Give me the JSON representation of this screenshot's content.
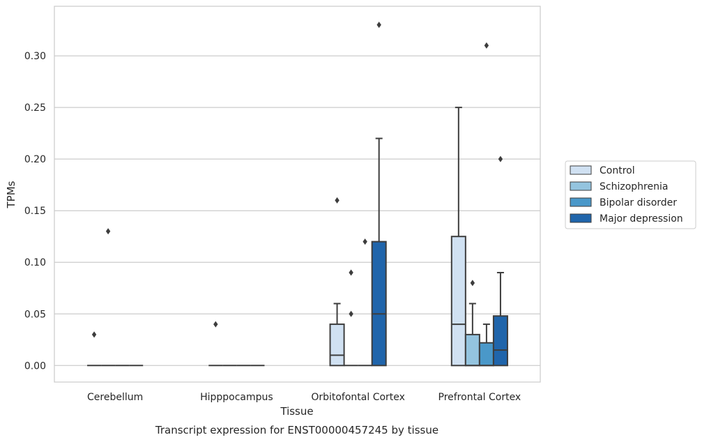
{
  "chart_data": {
    "type": "box",
    "title": "",
    "xlabel": "Tissue",
    "ylabel": "TPMs",
    "caption": "Transcript expression for ENST00000457245 by tissue",
    "ylim": [
      -0.016,
      0.348
    ],
    "yticks": [
      0.0,
      0.05,
      0.1,
      0.15,
      0.2,
      0.25,
      0.3
    ],
    "ytick_labels": [
      "0.00",
      "0.05",
      "0.10",
      "0.15",
      "0.20",
      "0.25",
      "0.30"
    ],
    "categories": [
      "Cerebellum",
      "Hipppocampus",
      "Orbitofontal Cortex",
      "Prefrontal Cortex"
    ],
    "grid": "horizontal",
    "legend_position": "right",
    "series": [
      {
        "name": "Control",
        "color": "#d0e1f2",
        "boxes": [
          {
            "q1": 0,
            "median": 0,
            "q3": 0,
            "whisker_low": 0,
            "whisker_high": 0,
            "outliers": [
              0.03
            ]
          },
          {
            "q1": 0,
            "median": 0,
            "q3": 0,
            "whisker_low": 0,
            "whisker_high": 0,
            "outliers": [
              0.04
            ]
          },
          {
            "q1": 0,
            "median": 0.01,
            "q3": 0.04,
            "whisker_low": 0,
            "whisker_high": 0.06,
            "outliers": [
              0.16
            ]
          },
          {
            "q1": 0,
            "median": 0.04,
            "q3": 0.125,
            "whisker_low": 0,
            "whisker_high": 0.25,
            "outliers": []
          }
        ]
      },
      {
        "name": "Schizophrenia",
        "color": "#94c4df",
        "boxes": [
          {
            "q1": 0,
            "median": 0,
            "q3": 0,
            "whisker_low": 0,
            "whisker_high": 0,
            "outliers": [
              0.13
            ]
          },
          {
            "q1": 0,
            "median": 0,
            "q3": 0,
            "whisker_low": 0,
            "whisker_high": 0,
            "outliers": []
          },
          {
            "q1": 0,
            "median": 0,
            "q3": 0,
            "whisker_low": 0,
            "whisker_high": 0,
            "outliers": [
              0.05,
              0.09
            ]
          },
          {
            "q1": 0,
            "median": 0,
            "q3": 0.03,
            "whisker_low": 0,
            "whisker_high": 0.06,
            "outliers": [
              0.08
            ]
          }
        ]
      },
      {
        "name": "Bipolar disorder",
        "color": "#4a98c9",
        "boxes": [
          {
            "q1": 0,
            "median": 0,
            "q3": 0,
            "whisker_low": 0,
            "whisker_high": 0,
            "outliers": []
          },
          {
            "q1": 0,
            "median": 0,
            "q3": 0,
            "whisker_low": 0,
            "whisker_high": 0,
            "outliers": []
          },
          {
            "q1": 0,
            "median": 0,
            "q3": 0,
            "whisker_low": 0,
            "whisker_high": 0,
            "outliers": [
              0.12
            ]
          },
          {
            "q1": 0,
            "median": 0,
            "q3": 0.022,
            "whisker_low": 0,
            "whisker_high": 0.04,
            "outliers": [
              0.31
            ]
          }
        ]
      },
      {
        "name": "Major depression",
        "color": "#2065ab",
        "boxes": [
          {
            "q1": 0,
            "median": 0,
            "q3": 0,
            "whisker_low": 0,
            "whisker_high": 0,
            "outliers": []
          },
          {
            "q1": 0,
            "median": 0,
            "q3": 0,
            "whisker_low": 0,
            "whisker_high": 0,
            "outliers": []
          },
          {
            "q1": 0,
            "median": 0.05,
            "q3": 0.12,
            "whisker_low": 0,
            "whisker_high": 0.22,
            "outliers": [
              0.33
            ]
          },
          {
            "q1": 0,
            "median": 0.015,
            "q3": 0.048,
            "whisker_low": 0,
            "whisker_high": 0.09,
            "outliers": [
              0.2
            ]
          }
        ]
      }
    ]
  }
}
